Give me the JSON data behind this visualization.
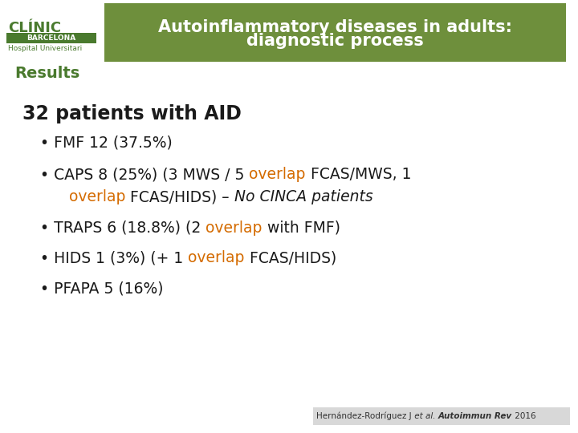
{
  "background_color": "#ffffff",
  "header_bg_color": "#6e8f3c",
  "header_text_line1": "Autoinflammatory diseases in adults:",
  "header_text_line2": "diagnostic process",
  "header_text_color": "#ffffff",
  "results_text": "Results",
  "results_color": "#4a7a2e",
  "title_text": "32 patients with AID",
  "title_color": "#1a1a1a",
  "orange_color": "#d46b00",
  "black_color": "#1a1a1a",
  "footer_text_normal": "Hernández-Rodríguez J",
  "footer_et_al": " et al. ",
  "footer_journal_bold_italic": "Autoimmun Rev",
  "footer_year": " 2016",
  "footer_color": "#333333",
  "footer_bg": "#d8d8d8",
  "logo_green": "#4a7a2e",
  "clinic_text": "CLÍNIC",
  "barcelona_text": "BARCELONA",
  "hospital_text": "Hospital Universitari"
}
